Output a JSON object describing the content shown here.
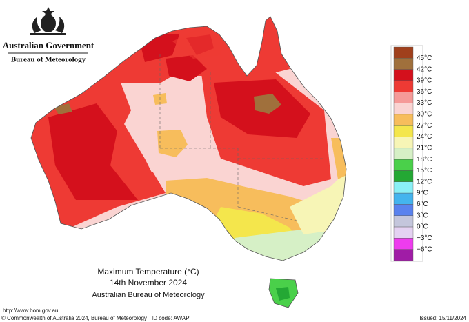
{
  "header": {
    "agency": "Australian Government",
    "bureau": "Bureau of Meteorology"
  },
  "legend": {
    "labels": [
      "45°C",
      "42°C",
      "39°C",
      "36°C",
      "33°C",
      "30°C",
      "27°C",
      "24°C",
      "21°C",
      "18°C",
      "15°C",
      "12°C",
      "9°C",
      "6°C",
      "3°C",
      "0°C",
      "−3°C",
      "−6°C"
    ],
    "colors": [
      "#a0401c",
      "#a0703c",
      "#d4101c",
      "#ee3a34",
      "#f59a98",
      "#fad4d2",
      "#f7bd5c",
      "#f4e64c",
      "#f7f5b6",
      "#d6f0c6",
      "#4ad04a",
      "#24a834",
      "#8af0f6",
      "#44b4ee",
      "#5a82ee",
      "#c4c6dc",
      "#e4d2f2",
      "#ee3cee",
      "#a01ca6"
    ]
  },
  "title": {
    "line1": "Maximum Temperature (°C)",
    "line2": "14th November 2024",
    "line3": "Australian Bureau of Meteorology"
  },
  "footer": {
    "url": "http://www.bom.gov.au",
    "copyright": "© Commonwealth of Australia 2024, Bureau of Meteorology",
    "id_code": "ID code: AWAP",
    "issued": "Issued: 15/11/2024"
  }
}
